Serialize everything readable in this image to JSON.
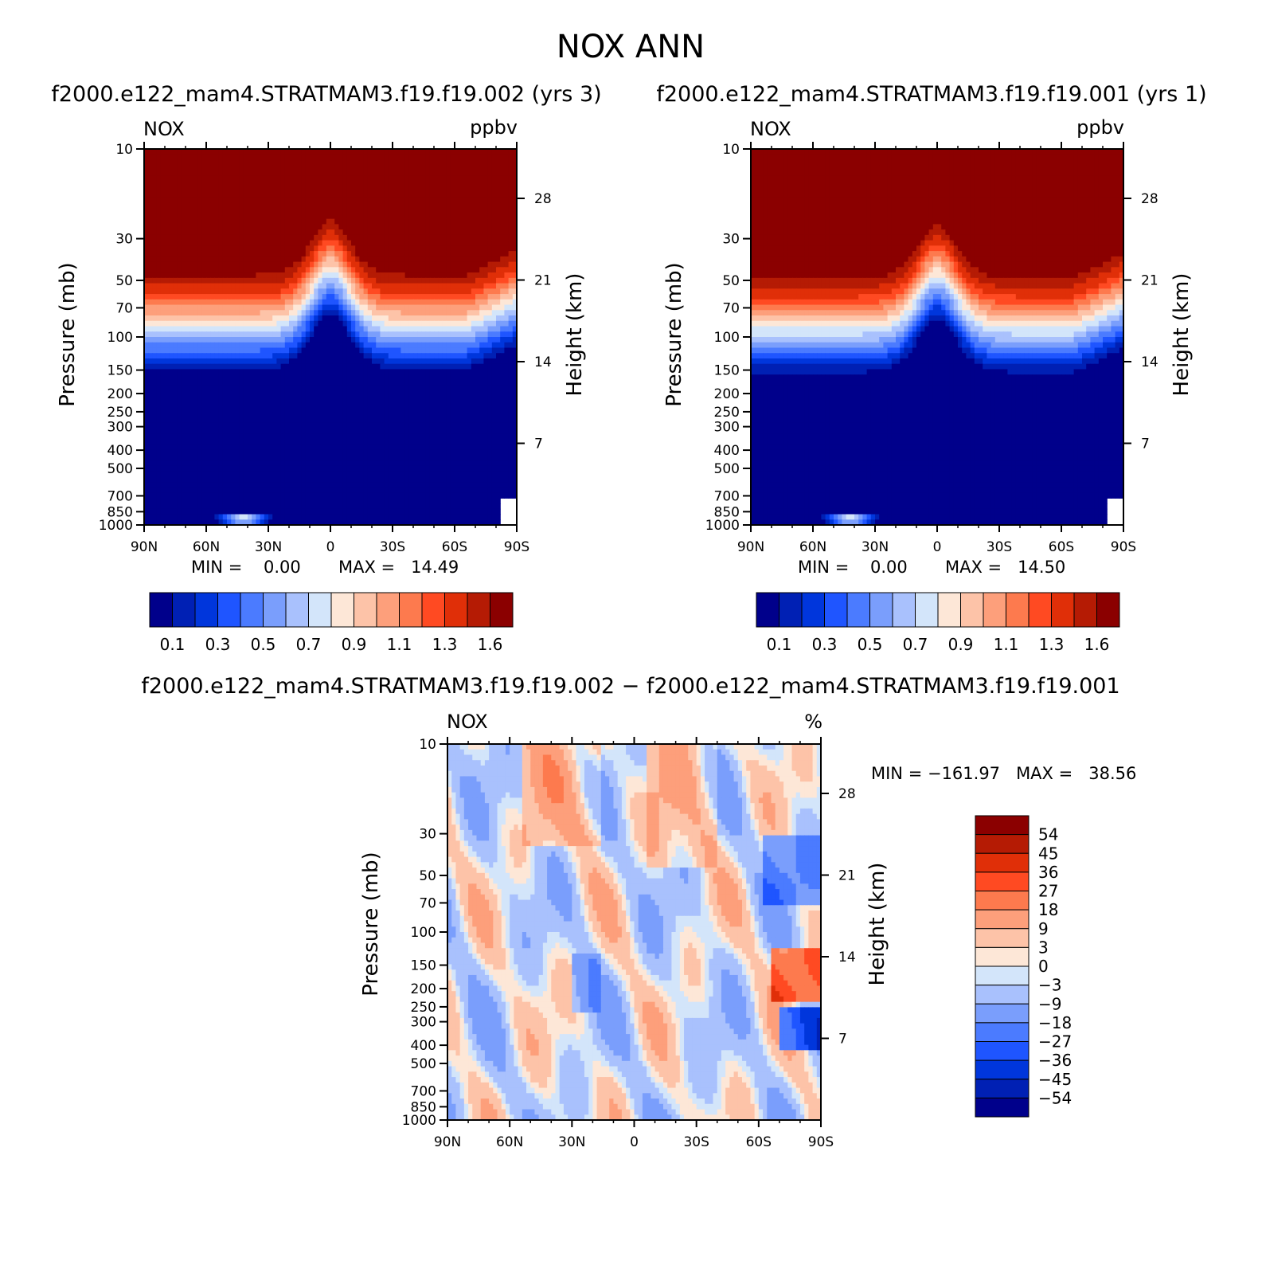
{
  "title": "NOX ANN",
  "panels": [
    {
      "id": "test",
      "subtitle": "f2000.e122_mam4.STRATMAM3.f19.f19.002 (yrs 3)",
      "var_label": "NOX",
      "units": "ppbv",
      "ylabel": "Pressure (mb)",
      "ylabel_right": "Height (km)",
      "min_text": "MIN =    0.00",
      "max_text": "MAX =   14.49"
    },
    {
      "id": "control",
      "subtitle": "f2000.e122_mam4.STRATMAM3.f19.f19.001 (yrs 1)",
      "var_label": "NOX",
      "units": "ppbv",
      "ylabel": "Pressure (mb)",
      "ylabel_right": "Height (km)",
      "min_text": "MIN =    0.00",
      "max_text": "MAX =   14.50"
    },
    {
      "id": "diff",
      "subtitle": "f2000.e122_mam4.STRATMAM3.f19.f19.002 − f2000.e122_mam4.STRATMAM3.f19.f19.001",
      "var_label": "NOX",
      "units": "%",
      "ylabel": "Pressure (mb)",
      "ylabel_right": "Height (km)",
      "minmax_text": "MIN = −161.97   MAX =   38.56"
    }
  ],
  "colorbar_abs": {
    "labels": [
      "0.1",
      "0.3",
      "0.5",
      "0.7",
      "0.9",
      "1.1",
      "1.3",
      "1.6"
    ],
    "colors": [
      "#00008b",
      "#0020b4",
      "#0036dc",
      "#1f55ff",
      "#4b7bff",
      "#7a9efc",
      "#a9c1fd",
      "#d3e5fa",
      "#fde7d7",
      "#fdc3a8",
      "#fd9f7b",
      "#fd7a4e",
      "#ff4a22",
      "#e02f08",
      "#b51b04",
      "#8b0000"
    ]
  },
  "colorbar_diff": {
    "labels": [
      "54",
      "45",
      "36",
      "27",
      "18",
      "9",
      "3",
      "0",
      "−3",
      "−9",
      "−18",
      "−27",
      "−36",
      "−45",
      "−54"
    ],
    "colors": [
      "#8b0000",
      "#b51b04",
      "#e02f08",
      "#ff4a22",
      "#fd7a4e",
      "#fd9f7b",
      "#fdc3a8",
      "#fde7d7",
      "#d3e5fa",
      "#a9c1fd",
      "#7a9efc",
      "#4b7bff",
      "#1f55ff",
      "#0036dc",
      "#0020b4",
      "#00008b"
    ]
  },
  "chart_data": [
    {
      "type": "heatmap",
      "title": "f2000.e122_mam4.STRATMAM3.f19.f19.002 (yrs 3)",
      "xlabel": "",
      "ylabel": "Pressure (mb)",
      "y2label": "Height (km)",
      "x_ticks": [
        "90N",
        "60N",
        "30N",
        "0",
        "30S",
        "60S",
        "90S"
      ],
      "x_tick_values": [
        90,
        60,
        30,
        0,
        -30,
        -60,
        -90
      ],
      "y_ticks": [
        "10",
        "30",
        "50",
        "70",
        "100",
        "150",
        "200",
        "250",
        "300",
        "400",
        "500",
        "700",
        "850",
        "1000"
      ],
      "y_tick_values": [
        10,
        30,
        50,
        70,
        100,
        150,
        200,
        250,
        300,
        400,
        500,
        700,
        850,
        1000
      ],
      "y2_ticks": [
        "28",
        "21",
        "14",
        "7"
      ],
      "y2_tick_values": [
        28,
        21,
        14,
        7
      ],
      "levels": [
        0.1,
        0.2,
        0.3,
        0.4,
        0.5,
        0.6,
        0.7,
        0.8,
        0.9,
        1.0,
        1.1,
        1.2,
        1.3,
        1.45,
        1.6
      ],
      "units": "ppbv",
      "min": 0.0,
      "max": 14.49
    },
    {
      "type": "heatmap",
      "title": "f2000.e122_mam4.STRATMAM3.f19.f19.001 (yrs 1)",
      "xlabel": "",
      "ylabel": "Pressure (mb)",
      "y2label": "Height (km)",
      "x_ticks": [
        "90N",
        "60N",
        "30N",
        "0",
        "30S",
        "60S",
        "90S"
      ],
      "x_tick_values": [
        90,
        60,
        30,
        0,
        -30,
        -60,
        -90
      ],
      "y_ticks": [
        "10",
        "30",
        "50",
        "70",
        "100",
        "150",
        "200",
        "250",
        "300",
        "400",
        "500",
        "700",
        "850",
        "1000"
      ],
      "y_tick_values": [
        10,
        30,
        50,
        70,
        100,
        150,
        200,
        250,
        300,
        400,
        500,
        700,
        850,
        1000
      ],
      "y2_ticks": [
        "28",
        "21",
        "14",
        "7"
      ],
      "y2_tick_values": [
        28,
        21,
        14,
        7
      ],
      "levels": [
        0.1,
        0.2,
        0.3,
        0.4,
        0.5,
        0.6,
        0.7,
        0.8,
        0.9,
        1.0,
        1.1,
        1.2,
        1.3,
        1.45,
        1.6
      ],
      "units": "ppbv",
      "min": 0.0,
      "max": 14.5
    },
    {
      "type": "heatmap",
      "title": "f2000.e122_mam4.STRATMAM3.f19.f19.002 − f2000.e122_mam4.STRATMAM3.f19.f19.001",
      "xlabel": "",
      "ylabel": "Pressure (mb)",
      "y2label": "Height (km)",
      "x_ticks": [
        "90N",
        "60N",
        "30N",
        "0",
        "30S",
        "60S",
        "90S"
      ],
      "x_tick_values": [
        90,
        60,
        30,
        0,
        -30,
        -60,
        -90
      ],
      "y_ticks": [
        "10",
        "30",
        "50",
        "70",
        "100",
        "150",
        "200",
        "250",
        "300",
        "400",
        "500",
        "700",
        "850",
        "1000"
      ],
      "y_tick_values": [
        10,
        30,
        50,
        70,
        100,
        150,
        200,
        250,
        300,
        400,
        500,
        700,
        850,
        1000
      ],
      "y2_ticks": [
        "28",
        "21",
        "14",
        "7"
      ],
      "y2_tick_values": [
        28,
        21,
        14,
        7
      ],
      "levels": [
        -54,
        -45,
        -36,
        -27,
        -18,
        -9,
        -3,
        0,
        3,
        9,
        18,
        27,
        36,
        45,
        54
      ],
      "units": "%",
      "min": -161.97,
      "max": 38.56
    }
  ]
}
